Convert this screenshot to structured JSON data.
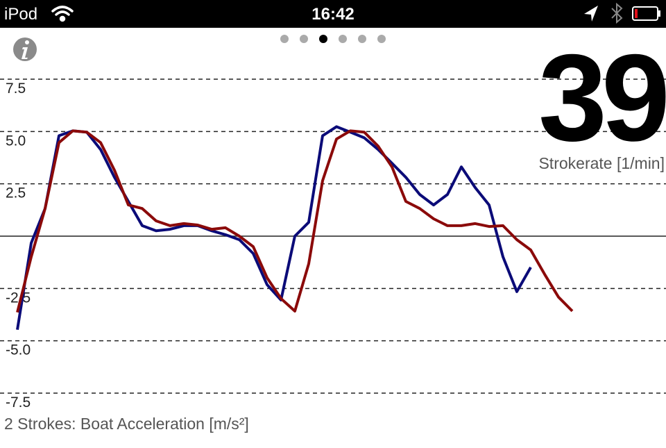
{
  "status_bar": {
    "carrier": "iPod",
    "time": "16:42"
  },
  "stroke_rate": {
    "value": 39,
    "label": "Strokerate [1/min]"
  },
  "chart_data": {
    "type": "line",
    "title": "2 Strokes: Boat Acceleration [m/s²]",
    "series": [
      {
        "color": "#0b0b78",
        "values": [
          -4.47,
          -0.33,
          1.32,
          4.8,
          5.03,
          4.97,
          4.14,
          2.81,
          1.66,
          0.5,
          0.26,
          0.33,
          0.5,
          0.5,
          0.26,
          0.07,
          -0.17,
          -0.83,
          -2.32,
          -3.05,
          0,
          0.66,
          4.8,
          5.23,
          4.97,
          4.7,
          4.14,
          3.48,
          2.81,
          1.99,
          1.49,
          1.99,
          3.31,
          2.32,
          1.49,
          -0.99,
          -2.65,
          -1.49,
          null,
          null,
          null
        ]
      },
      {
        "color": "#8b0a0a",
        "values": [
          -3.64,
          -0.99,
          1.32,
          4.47,
          5.03,
          4.97,
          4.47,
          3.15,
          1.49,
          1.32,
          0.73,
          0.5,
          0.6,
          0.53,
          0.33,
          0.4,
          0,
          -0.5,
          -1.99,
          -2.98,
          -3.58,
          -1.32,
          2.65,
          4.64,
          5.03,
          4.97,
          4.3,
          3.31,
          1.66,
          1.32,
          0.83,
          0.5,
          0.5,
          0.6,
          0.46,
          0.5,
          -0.17,
          -0.66,
          -1.82,
          -2.91,
          -3.58
        ]
      }
    ],
    "ylim": [
      -7.5,
      7.5
    ],
    "yticks": [
      7.5,
      {
        "value": 5,
        "label": "5.0"
      },
      2.5,
      -2.5,
      {
        "value": -5,
        "label": "-5.0"
      },
      -7.5
    ],
    "grid": true
  }
}
